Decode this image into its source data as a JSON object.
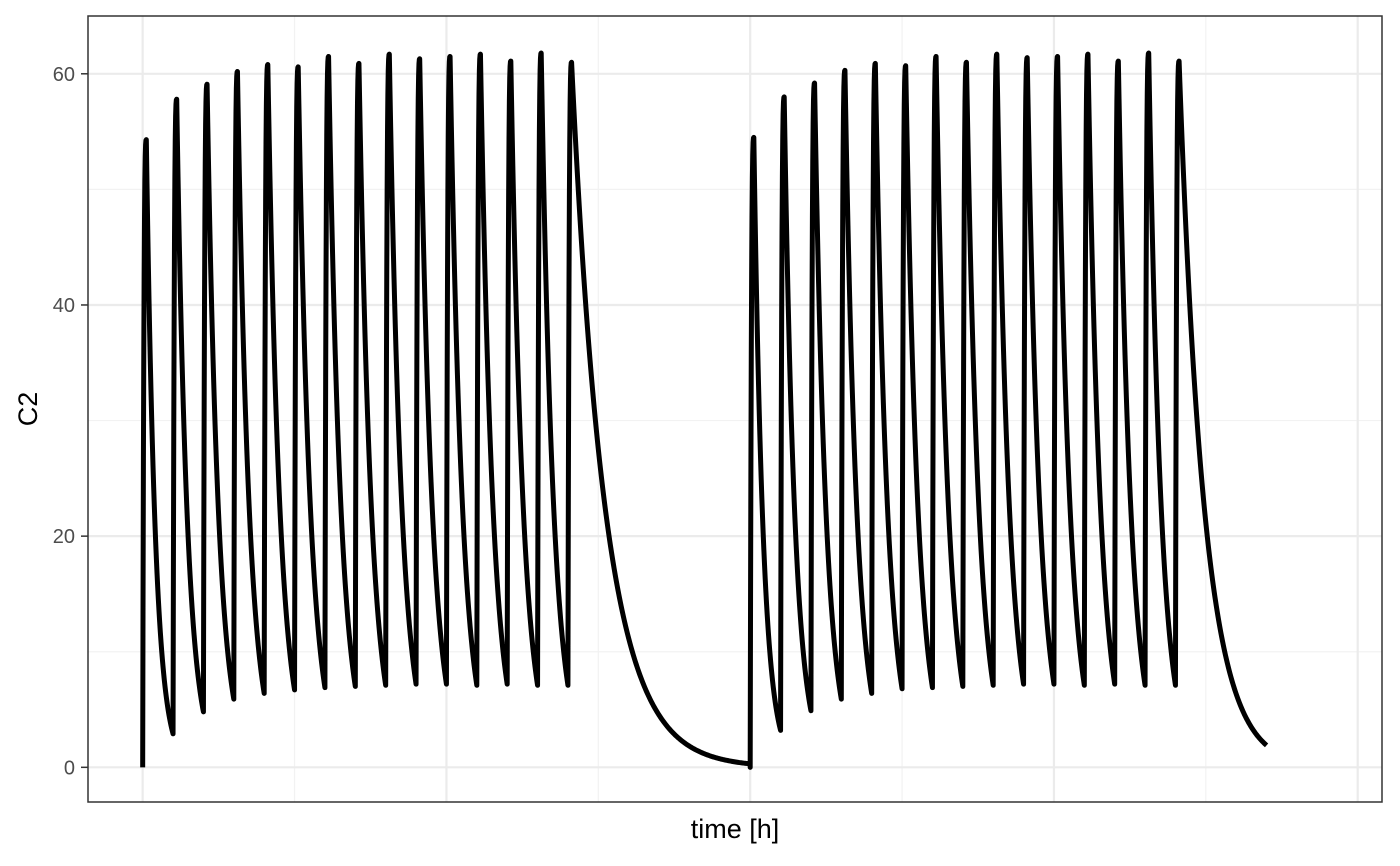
{
  "chart_data": {
    "type": "line",
    "title": "",
    "xlabel": "time [h]",
    "ylabel": "C2",
    "ylim": [
      -3,
      65
    ],
    "yticks": [
      0,
      20,
      40,
      60
    ],
    "ytick_labels": [
      "0",
      "20",
      "40",
      "60"
    ],
    "xlim": [
      -0.9,
      20.4
    ],
    "xtick_labels": [],
    "grid": true,
    "legend": "none",
    "series": [
      {
        "name": "C2",
        "color": "#000000",
        "cycles": [
          {
            "dose_times": [
              0,
              0.5,
              1,
              1.5,
              2,
              2.5,
              3,
              3.5,
              4,
              4.5,
              5,
              5.5,
              6,
              6.5,
              7
            ],
            "peaks": [
              54.3,
              57.8,
              59.1,
              60.2,
              60.8,
              60.6,
              61.5,
              60.9,
              61.7,
              61.3,
              61.5,
              61.7,
              61.1,
              61.8,
              61.0
            ],
            "troughs": [
              2.9,
              4.8,
              5.9,
              6.4,
              6.7,
              6.9,
              7.0,
              7.1,
              7.2,
              7.2,
              7.1,
              7.2,
              7.1,
              7.1
            ],
            "tail_end_time": 10,
            "tail_end_value": 0.3
          },
          {
            "dose_times": [
              10,
              10.5,
              11,
              11.5,
              12,
              12.5,
              13,
              13.5,
              14,
              14.5,
              15,
              15.5,
              16,
              16.5,
              17
            ],
            "peaks": [
              54.5,
              58.0,
              59.2,
              60.3,
              60.9,
              60.7,
              61.5,
              61.0,
              61.7,
              61.4,
              61.5,
              61.7,
              61.1,
              61.8,
              61.1
            ],
            "troughs": [
              3.2,
              4.9,
              5.9,
              6.4,
              6.8,
              6.9,
              7.0,
              7.1,
              7.2,
              7.2,
              7.1,
              7.2,
              7.1,
              7.1
            ],
            "tail_end_time": 18.5,
            "tail_end_value": 1.9
          }
        ]
      }
    ]
  }
}
